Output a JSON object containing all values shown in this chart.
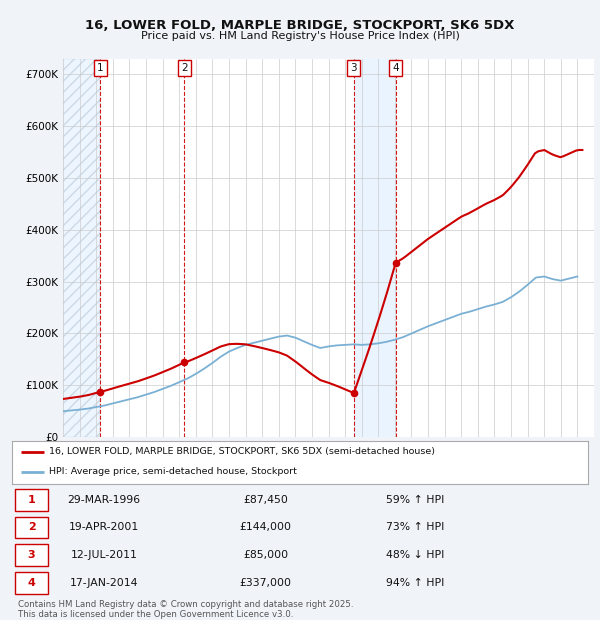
{
  "title": "16, LOWER FOLD, MARPLE BRIDGE, STOCKPORT, SK6 5DX",
  "subtitle": "Price paid vs. HM Land Registry's House Price Index (HPI)",
  "bg_color": "#f0f4f8",
  "plot_bg_color": "#ffffff",
  "grid_color": "#cccccc",
  "sale_color": "#cc0000",
  "hpi_color": "#7ab0d4",
  "hatch_color": "#ccddee",
  "shade_color": "#ddeeff",
  "sale_points": [
    {
      "label": 1,
      "year": 1996.24,
      "price": 87450
    },
    {
      "label": 2,
      "year": 2001.3,
      "price": 144000
    },
    {
      "label": 3,
      "year": 2011.53,
      "price": 85000
    },
    {
      "label": 4,
      "year": 2014.05,
      "price": 337000
    }
  ],
  "legend_line1": "16, LOWER FOLD, MARPLE BRIDGE, STOCKPORT, SK6 5DX (semi-detached house)",
  "legend_line2": "HPI: Average price, semi-detached house, Stockport",
  "table_rows": [
    [
      "1",
      "29-MAR-1996",
      "£87,450",
      "59% ↑ HPI"
    ],
    [
      "2",
      "19-APR-2001",
      "£144,000",
      "73% ↑ HPI"
    ],
    [
      "3",
      "12-JUL-2011",
      "£85,000",
      "48% ↓ HPI"
    ],
    [
      "4",
      "17-JAN-2014",
      "£337,000",
      "94% ↑ HPI"
    ]
  ],
  "footer": "Contains HM Land Registry data © Crown copyright and database right 2025.\nThis data is licensed under the Open Government Licence v3.0.",
  "xlim": [
    1994,
    2026
  ],
  "ylim": [
    0,
    730000
  ],
  "yticks": [
    0,
    100000,
    200000,
    300000,
    400000,
    500000,
    600000,
    700000
  ]
}
